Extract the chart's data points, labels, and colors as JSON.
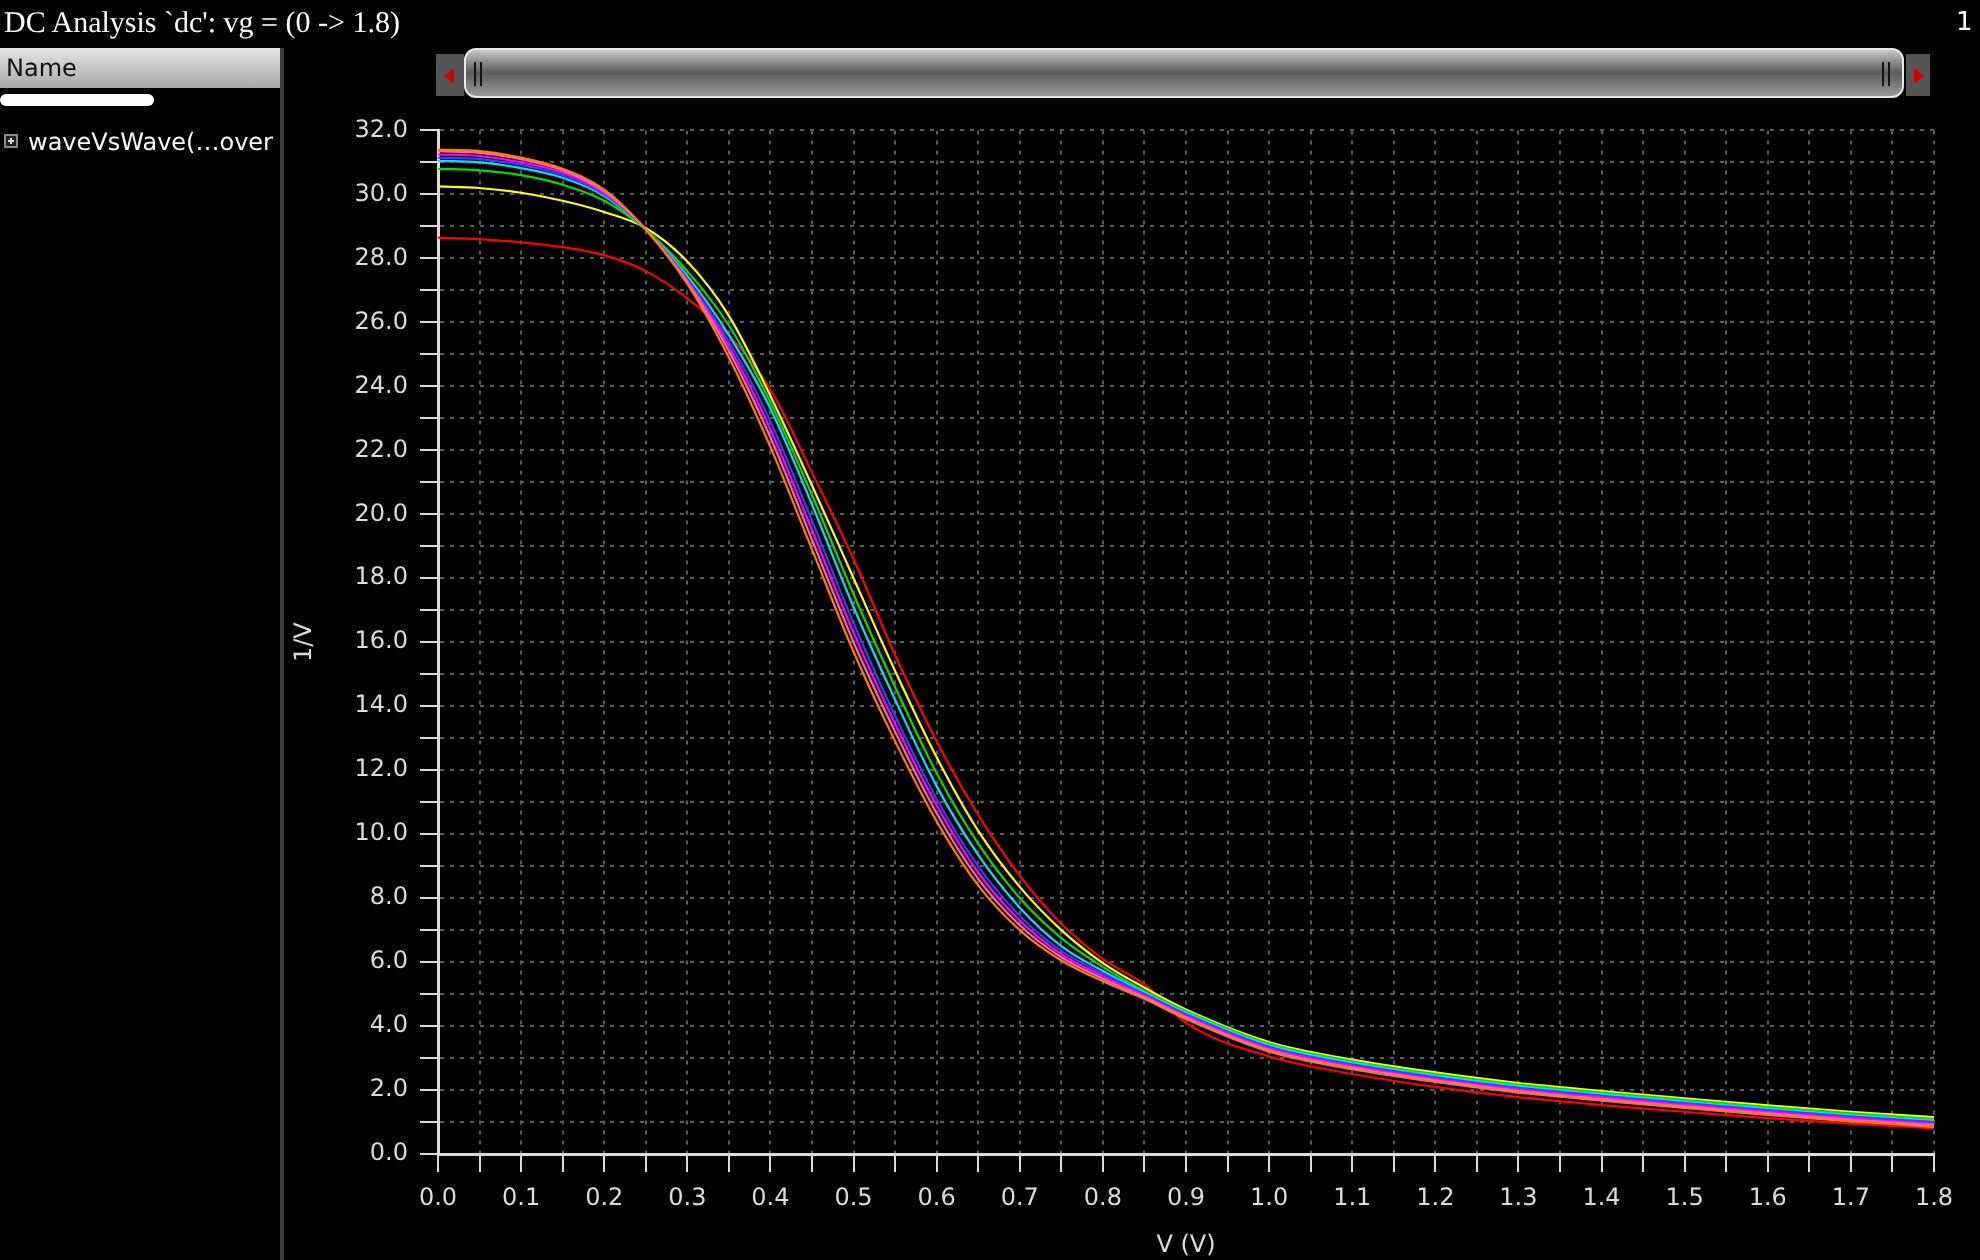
{
  "chart_data": {
    "type": "line",
    "title": "DC Analysis `dc': vg = (0 -> 1.8)",
    "xlabel": "V (V)",
    "ylabel": "1/V",
    "annotations": [
      "Name",
      "waveVsWave(…over",
      "1"
    ],
    "grid": true,
    "marker": "none",
    "line_style": "solid",
    "xlim": [
      0,
      1.8
    ],
    "ylim": [
      0,
      32
    ],
    "xticks": [
      {
        "value": 0,
        "label": "0.0"
      },
      {
        "value": 0.05,
        "label": null
      },
      {
        "value": 0.1,
        "label": "0.1"
      },
      {
        "value": 0.15,
        "label": null
      },
      {
        "value": 0.2,
        "label": "0.2"
      },
      {
        "value": 0.25,
        "label": null
      },
      {
        "value": 0.3,
        "label": "0.3"
      },
      {
        "value": 0.35,
        "label": null
      },
      {
        "value": 0.4,
        "label": "0.4"
      },
      {
        "value": 0.45,
        "label": null
      },
      {
        "value": 0.5,
        "label": "0.5"
      },
      {
        "value": 0.55,
        "label": null
      },
      {
        "value": 0.6,
        "label": "0.6"
      },
      {
        "value": 0.65,
        "label": null
      },
      {
        "value": 0.7,
        "label": "0.7"
      },
      {
        "value": 0.75,
        "label": null
      },
      {
        "value": 0.8,
        "label": "0.8"
      },
      {
        "value": 0.85,
        "label": null
      },
      {
        "value": 0.9,
        "label": "0.9"
      },
      {
        "value": 0.95,
        "label": null
      },
      {
        "value": 1.0,
        "label": "1.0"
      },
      {
        "value": 1.05,
        "label": null
      },
      {
        "value": 1.1,
        "label": "1.1"
      },
      {
        "value": 1.15,
        "label": null
      },
      {
        "value": 1.2,
        "label": "1.2"
      },
      {
        "value": 1.25,
        "label": null
      },
      {
        "value": 1.3,
        "label": "1.3"
      },
      {
        "value": 1.35,
        "label": null
      },
      {
        "value": 1.4,
        "label": "1.4"
      },
      {
        "value": 1.45,
        "label": null
      },
      {
        "value": 1.5,
        "label": "1.5"
      },
      {
        "value": 1.55,
        "label": null
      },
      {
        "value": 1.6,
        "label": "1.6"
      },
      {
        "value": 1.65,
        "label": null
      },
      {
        "value": 1.7,
        "label": "1.7"
      },
      {
        "value": 1.75,
        "label": null
      },
      {
        "value": 1.8,
        "label": "1.8"
      }
    ],
    "yticks": [
      {
        "value": 0,
        "label": "0.0"
      },
      {
        "value": 1,
        "label": null
      },
      {
        "value": 2,
        "label": "2.0"
      },
      {
        "value": 3,
        "label": null
      },
      {
        "value": 4,
        "label": "4.0"
      },
      {
        "value": 5,
        "label": null
      },
      {
        "value": 6,
        "label": "6.0"
      },
      {
        "value": 7,
        "label": null
      },
      {
        "value": 8,
        "label": "8.0"
      },
      {
        "value": 9,
        "label": null
      },
      {
        "value": 10,
        "label": "10.0"
      },
      {
        "value": 11,
        "label": null
      },
      {
        "value": 12,
        "label": "12.0"
      },
      {
        "value": 13,
        "label": null
      },
      {
        "value": 14,
        "label": "14.0"
      },
      {
        "value": 15,
        "label": null
      },
      {
        "value": 16,
        "label": "16.0"
      },
      {
        "value": 17,
        "label": null
      },
      {
        "value": 18,
        "label": "18.0"
      },
      {
        "value": 19,
        "label": null
      },
      {
        "value": 20,
        "label": "20.0"
      },
      {
        "value": 21,
        "label": null
      },
      {
        "value": 22,
        "label": "22.0"
      },
      {
        "value": 23,
        "label": null
      },
      {
        "value": 24,
        "label": "24.0"
      },
      {
        "value": 25,
        "label": null
      },
      {
        "value": 26,
        "label": "26.0"
      },
      {
        "value": 27,
        "label": null
      },
      {
        "value": 28,
        "label": "28.0"
      },
      {
        "value": 29,
        "label": null
      },
      {
        "value": 30,
        "label": "30.0"
      },
      {
        "value": 31,
        "label": null
      },
      {
        "value": 32,
        "label": "32.0"
      }
    ],
    "x": [
      0,
      0.05,
      0.1,
      0.15,
      0.2,
      0.25,
      0.3,
      0.35,
      0.4,
      0.45,
      0.5,
      0.55,
      0.6,
      0.65,
      0.7,
      0.75,
      0.8,
      0.85,
      0.9,
      1.0,
      1.1,
      1.2,
      1.3,
      1.4,
      1.5,
      1.6,
      1.7,
      1.8
    ],
    "series": [
      {
        "color": "#ff8000",
        "values": [
          31.4,
          31.35,
          31.15,
          30.8,
          30.15,
          28.9,
          27.2,
          24.9,
          22.1,
          18.9,
          15.7,
          12.9,
          10.4,
          8.4,
          7.0,
          6.05,
          5.4,
          4.85,
          4.22,
          3.2,
          2.65,
          2.25,
          1.92,
          1.67,
          1.44,
          1.22,
          1.02,
          0.85
        ]
      },
      {
        "color": "#ff66aa",
        "values": [
          31.35,
          31.3,
          31.1,
          30.75,
          30.1,
          28.9,
          27.25,
          25.1,
          22.4,
          19.2,
          16.0,
          13.2,
          10.65,
          8.6,
          7.15,
          6.15,
          5.48,
          4.9,
          4.27,
          3.25,
          2.7,
          2.3,
          1.97,
          1.72,
          1.49,
          1.27,
          1.07,
          0.9
        ]
      },
      {
        "color": "#ff00ff",
        "values": [
          31.25,
          31.2,
          31.0,
          30.68,
          30.05,
          28.9,
          27.3,
          25.25,
          22.65,
          19.5,
          16.3,
          13.45,
          10.9,
          8.8,
          7.3,
          6.25,
          5.56,
          4.95,
          4.32,
          3.3,
          2.75,
          2.35,
          2.02,
          1.77,
          1.54,
          1.32,
          1.12,
          0.95
        ]
      },
      {
        "color": "#3040ff",
        "values": [
          31.15,
          31.1,
          30.92,
          30.6,
          30.0,
          28.9,
          27.35,
          25.4,
          22.9,
          19.8,
          16.6,
          13.7,
          11.1,
          9.0,
          7.45,
          6.35,
          5.64,
          5.0,
          4.37,
          3.35,
          2.8,
          2.4,
          2.07,
          1.82,
          1.59,
          1.37,
          1.17,
          1.0
        ]
      },
      {
        "color": "#00e0ff",
        "values": [
          31.05,
          31.0,
          30.82,
          30.52,
          29.95,
          28.9,
          27.45,
          25.6,
          23.3,
          20.3,
          17.1,
          14.2,
          11.5,
          9.35,
          7.7,
          6.5,
          5.72,
          5.05,
          4.42,
          3.4,
          2.85,
          2.45,
          2.12,
          1.87,
          1.64,
          1.42,
          1.22,
          1.05
        ]
      },
      {
        "color": "#00e000",
        "values": [
          30.8,
          30.75,
          30.6,
          30.3,
          29.8,
          28.9,
          27.6,
          25.9,
          23.5,
          20.6,
          17.5,
          14.6,
          11.9,
          9.7,
          8.0,
          6.75,
          5.85,
          5.1,
          4.47,
          3.45,
          2.9,
          2.5,
          2.17,
          1.92,
          1.69,
          1.47,
          1.27,
          1.1
        ]
      },
      {
        "color": "#ffff00",
        "values": [
          30.25,
          30.2,
          30.05,
          29.8,
          29.45,
          28.95,
          27.9,
          26.2,
          23.7,
          20.9,
          18.0,
          15.1,
          12.4,
          10.1,
          8.35,
          7.0,
          5.97,
          5.2,
          4.52,
          3.5,
          2.95,
          2.55,
          2.22,
          1.97,
          1.74,
          1.52,
          1.32,
          1.15
        ]
      },
      {
        "color": "#ff0000",
        "values": [
          28.65,
          28.6,
          28.5,
          28.35,
          28.1,
          27.6,
          26.75,
          25.6,
          23.9,
          21.3,
          18.6,
          15.6,
          12.9,
          10.6,
          8.7,
          7.2,
          6.1,
          5.3,
          4.1,
          3.05,
          2.5,
          2.1,
          1.78,
          1.53,
          1.32,
          1.12,
          0.95,
          0.8
        ]
      }
    ]
  }
}
